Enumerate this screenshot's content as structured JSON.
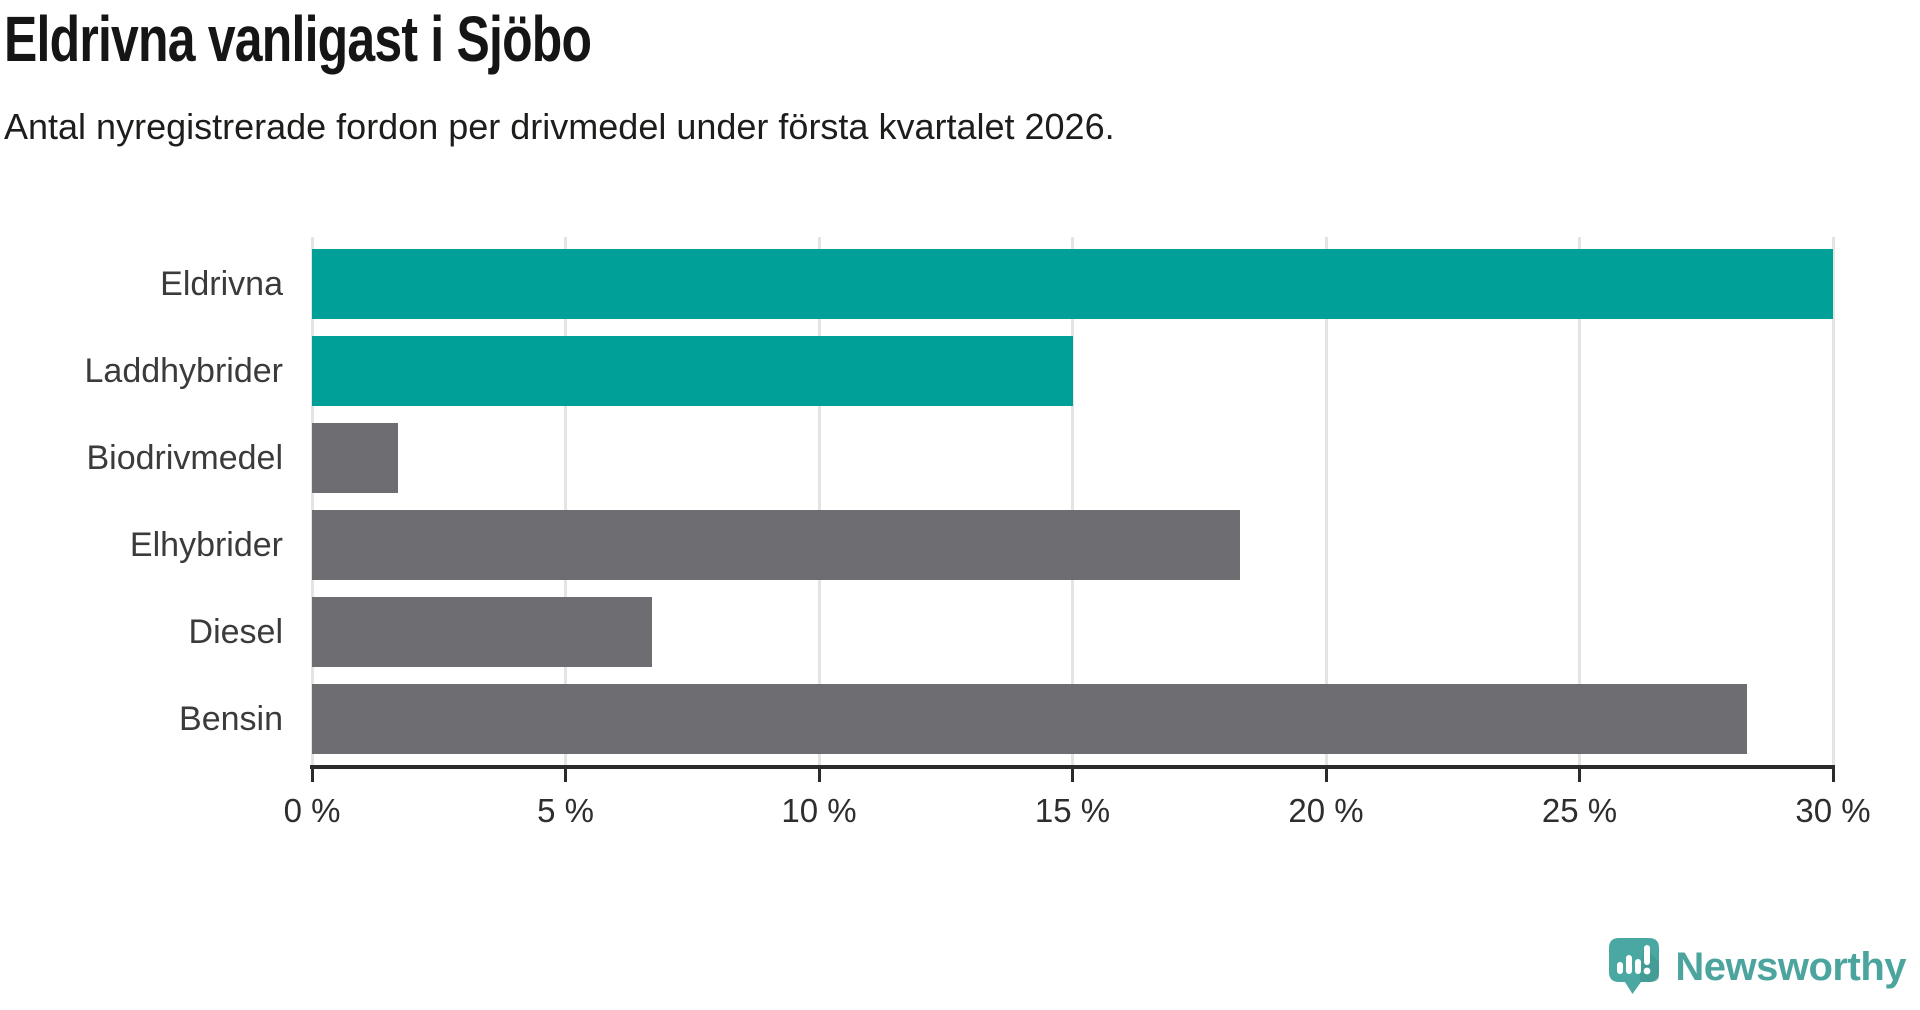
{
  "page": {
    "title": "Eldrivna vanligast i Sjöbo",
    "subtitle": "Antal nyregistrerade fordon per drivmedel under första kvartalet 2026."
  },
  "chart_data": {
    "type": "bar",
    "orientation": "horizontal",
    "title": "Eldrivna vanligast i Sjöbo",
    "subtitle": "Antal nyregistrerade fordon per drivmedel under första kvartalet 2026.",
    "categories": [
      "Eldrivna",
      "Laddhybrider",
      "Biodrivmedel",
      "Elhybrider",
      "Diesel",
      "Bensin"
    ],
    "values": [
      30,
      15,
      1.7,
      18.3,
      6.7,
      28.3
    ],
    "unit": "%",
    "xlabel": "",
    "ylabel": "",
    "xlim": [
      0,
      30
    ],
    "x_ticks": {
      "values": [
        0,
        5,
        10,
        15,
        20,
        25,
        30
      ],
      "labels": [
        "0 %",
        "5 %",
        "10 %",
        "15 %",
        "20 %",
        "25 %",
        "30 %"
      ]
    },
    "grid": "vertical-only",
    "legend": "none",
    "bar_colors": [
      "#00a099",
      "#00a099",
      "#6d6d72",
      "#6d6d72",
      "#6d6d72",
      "#6d6d72"
    ],
    "highlight_color": "#00a099",
    "default_color": "#6d6d72",
    "gridline_color": "#e4e4e4",
    "axis_color": "#2b2b2b"
  },
  "footer": {
    "logo_text": "Newsworthy",
    "logo_icon": "newsworthy-logo-icon",
    "logo_color": "#4ba7a1",
    "logo_text_color": "#4ca49e"
  }
}
